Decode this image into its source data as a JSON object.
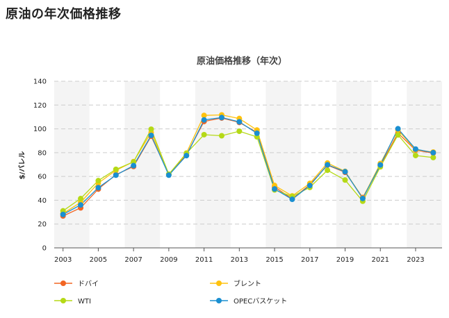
{
  "page": {
    "title": "原油の年次価格推移"
  },
  "chart_data": {
    "type": "line",
    "title": "原油価格推移（年次）",
    "xlabel": "",
    "ylabel": "$/バレル",
    "ylim": [
      0,
      140
    ],
    "yticks": [
      0,
      20,
      40,
      60,
      80,
      100,
      120,
      140
    ],
    "x": [
      2003,
      2004,
      2005,
      2006,
      2007,
      2008,
      2009,
      2010,
      2011,
      2012,
      2013,
      2014,
      2015,
      2016,
      2017,
      2018,
      2019,
      2020,
      2021,
      2022,
      2023,
      2024
    ],
    "xtick_labels": [
      "2003",
      "2005",
      "2007",
      "2009",
      "2011",
      "2013",
      "2015",
      "2017",
      "2019",
      "2021",
      "2023"
    ],
    "grid": true,
    "legend_position": "bottom",
    "series": [
      {
        "name": "ドバイ",
        "color": "#f26522",
        "values": [
          26.8,
          33.6,
          49.4,
          61.5,
          68.4,
          93.8,
          61.8,
          78.1,
          106.2,
          109.1,
          105.4,
          97.0,
          51.2,
          41.2,
          53.1,
          69.5,
          63.5,
          42.3,
          69.2,
          96.4,
          82.1,
          79.6
        ]
      },
      {
        "name": "ブレント",
        "color": "#ffc20e",
        "values": [
          28.8,
          38.2,
          54.4,
          65.1,
          72.5,
          97.0,
          61.7,
          79.6,
          111.3,
          111.7,
          108.7,
          99.0,
          52.4,
          43.7,
          54.2,
          71.3,
          64.3,
          41.8,
          70.9,
          99.0,
          82.5,
          80.5
        ]
      },
      {
        "name": "WTI",
        "color": "#b5d916",
        "values": [
          31.1,
          41.4,
          56.5,
          66.0,
          72.2,
          99.7,
          61.9,
          79.5,
          95.1,
          94.2,
          98.0,
          93.3,
          48.7,
          43.2,
          50.8,
          65.2,
          57.0,
          39.2,
          68.1,
          94.9,
          77.6,
          75.9
        ]
      },
      {
        "name": "OPECバスケット",
        "color": "#1a8fd1",
        "values": [
          28.1,
          36.1,
          50.6,
          61.1,
          69.1,
          94.5,
          61.1,
          77.5,
          107.5,
          109.5,
          105.9,
          96.3,
          49.5,
          40.8,
          52.4,
          69.8,
          64.0,
          41.5,
          69.7,
          100.1,
          83.0,
          80.0
        ]
      }
    ]
  }
}
